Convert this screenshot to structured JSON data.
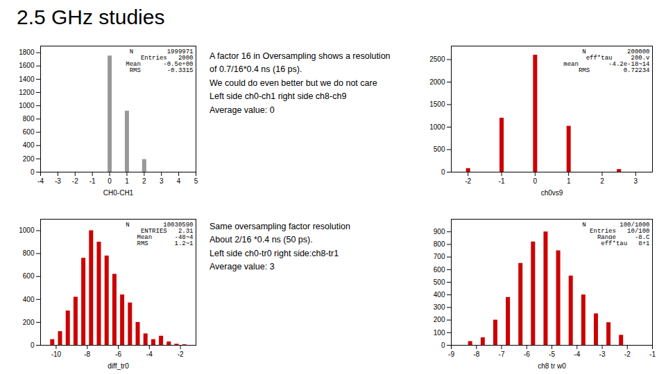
{
  "title": "2.5 GHz studies",
  "annotations": [
    [
      "A factor 16 in Oversampling shows a resolution",
      "of 0.7/16*0.4 ns (16 ps).",
      "We could do even better but we do not care",
      "Left side ch0-ch1 right side ch8-ch9",
      "Average value: 0"
    ],
    [
      "Same oversampling factor resolution",
      "About 2/16 *0.4 ns (50 ps).",
      "Left side ch0-tr0 right side:ch8-tr1",
      "Average value: 3"
    ]
  ],
  "chart_data": [
    {
      "type": "bar",
      "xlabel": "CH0-CH1",
      "x": [
        0,
        1,
        2
      ],
      "values": [
        1750,
        920,
        190
      ],
      "color": "#999999",
      "xlim": [
        -4,
        5
      ],
      "xticks": [
        -4,
        -3,
        -2,
        -1,
        0,
        1,
        2,
        3,
        4,
        5
      ],
      "ylim": [
        0,
        1900
      ],
      "yticks": [
        0,
        200,
        400,
        600,
        800,
        1000,
        1200,
        1400,
        1600,
        1800
      ],
      "annotations": [
        "N         1999971",
        "Entries   2000",
        "Mean      -0.5e+00",
        "RMS       -0.3315"
      ]
    },
    {
      "type": "bar",
      "xlabel": "ch0vs9",
      "x": [
        -2.0,
        -1.0,
        0.0,
        1.0,
        2.5
      ],
      "values": [
        80,
        1200,
        2600,
        1020,
        60
      ],
      "color": "#cc0000",
      "xlim": [
        -2.5,
        3.5
      ],
      "xticks": [
        -2,
        -1,
        0,
        1,
        2,
        3
      ],
      "ylim": [
        0,
        2800
      ],
      "yticks": [
        0,
        500,
        1000,
        1500,
        2000,
        2500
      ],
      "annotations": [
        "N           200000",
        "eff*tau     200.v",
        "mean        -4.2e-18~14",
        "RMS         0.72234"
      ]
    },
    {
      "type": "bar",
      "xlabel": "diff_tr0",
      "x": [
        -10.25,
        -9.75,
        -9.25,
        -8.75,
        -8.25,
        -7.75,
        -7.25,
        -6.75,
        -6.25,
        -5.75,
        -5.25,
        -4.75,
        -4.25,
        -3.75,
        -3.25,
        -2.75,
        -2.25,
        -1.75
      ],
      "values": [
        50,
        120,
        300,
        420,
        760,
        1000,
        900,
        780,
        620,
        440,
        370,
        200,
        100,
        50,
        80,
        30,
        10,
        5
      ],
      "color": "#cc0000",
      "xlim": [
        -11,
        -1
      ],
      "xticks": [
        -10,
        -8,
        -6,
        -4,
        -2
      ],
      "ylim": [
        0,
        1100
      ],
      "yticks": [
        0,
        200,
        400,
        600,
        800,
        1000
      ],
      "annotations": [
        "N         10030590",
        "ENTRIES   2.31",
        "Mean      -48~4",
        "RMS       1.2~1"
      ]
    },
    {
      "type": "bar",
      "xlabel": "ch8 tr w0",
      "x": [
        -8.25,
        -7.75,
        -7.25,
        -6.75,
        -6.25,
        -5.75,
        -5.25,
        -4.75,
        -4.25,
        -3.75,
        -3.25,
        -2.75,
        -2.25
      ],
      "values": [
        30,
        60,
        200,
        380,
        650,
        820,
        900,
        750,
        550,
        400,
        250,
        180,
        80
      ],
      "color": "#cc0000",
      "xlim": [
        -9,
        -1
      ],
      "xticks": [
        -9,
        -8,
        -7,
        -6,
        -5,
        -4,
        -3,
        -2,
        -1
      ],
      "ylim": [
        0,
        1000
      ],
      "yticks": [
        0,
        100,
        200,
        300,
        400,
        500,
        600,
        700,
        800,
        900
      ],
      "annotations": [
        "N         100/1000",
        "Entries   10/100",
        "Range     -8.C",
        "eff*tau   8+1"
      ]
    }
  ]
}
